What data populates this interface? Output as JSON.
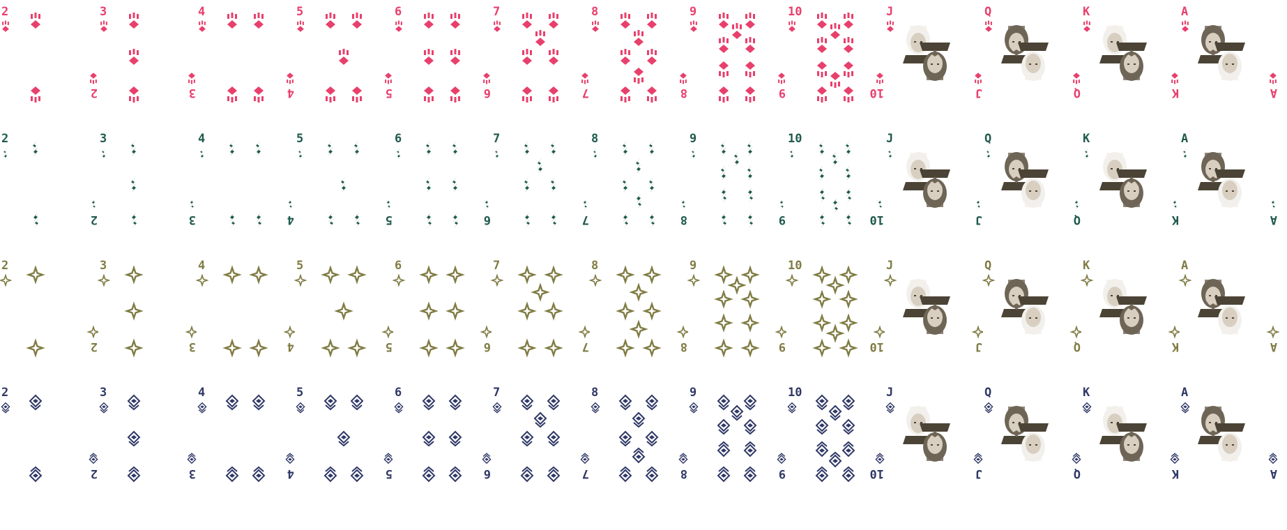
{
  "sheet": {
    "title": "",
    "ranks": [
      "2",
      "3",
      "4",
      "5",
      "6",
      "7",
      "8",
      "9",
      "10",
      "J",
      "Q",
      "K",
      "A"
    ],
    "suits": [
      {
        "name": "paws",
        "color": "#e8406c",
        "icon": "paw-icon"
      },
      {
        "name": "flames",
        "color": "#1f5a4c",
        "icon": "flame-icon"
      },
      {
        "name": "stars",
        "color": "#807c44",
        "icon": "four-point-star-icon"
      },
      {
        "name": "diamonds",
        "color": "#2f3866",
        "icon": "eye-diamond-icon"
      }
    ],
    "face_cards": [
      [
        "silver-haired-man-portrait-icon",
        "white-haired-woman-portrait-icon",
        "dark-haired-woman-portrait-icon",
        "blonde-girl-and-ghost-portrait-icon"
      ],
      [
        "bearded-man-portrait-icon",
        "bald-elder-portrait-icon",
        "grey-haired-man-portrait-icon",
        "hooded-figure-portrait-icon"
      ],
      [
        "masked-white-figure-portrait-icon",
        "witch-hat-woman-portrait-icon",
        "grey-haired-youth-portrait-icon",
        "brown-haired-boy-portrait-icon"
      ],
      [
        "hooded-elder-portrait-icon",
        "ghosts-portrait-icon",
        "bandaged-figure-portrait-icon",
        "white-haired-lantern-portrait-icon"
      ]
    ],
    "portrait_palette": {
      "skin": "#d8cfc0",
      "hair": "#6e6556",
      "cloth": "#4b4436",
      "light": "#f2f0ec"
    }
  }
}
